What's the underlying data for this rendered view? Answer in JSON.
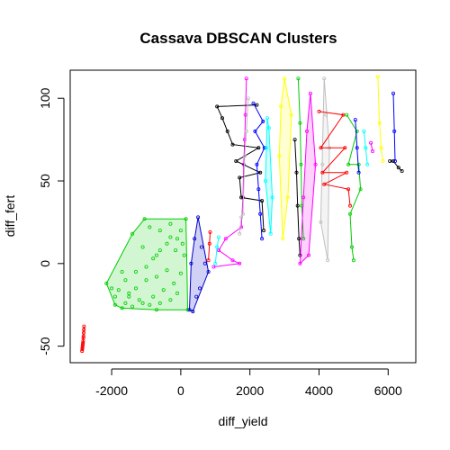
{
  "chart_data": {
    "type": "scatter",
    "title": "Cassava DBSCAN Clusters",
    "xlabel": "diff_yield",
    "ylabel": "diff_fert",
    "xlim": [
      -3200,
      6800
    ],
    "ylim": [
      -60,
      117
    ],
    "x_ticks": [
      -2000,
      0,
      2000,
      4000,
      6000
    ],
    "y_ticks": [
      -50,
      0,
      50,
      100
    ],
    "x_tick_labels": [
      "-2000",
      "0",
      "2000",
      "4000",
      "6000"
    ],
    "y_tick_labels": [
      "-50",
      "0",
      "50",
      "100"
    ],
    "grid": false,
    "legend": "none",
    "hull_fill": true,
    "clusters": [
      {
        "color": "#ff0000",
        "hull": false,
        "points": [
          [
            -2800,
            -38
          ],
          [
            -2805,
            -40
          ],
          [
            -2810,
            -42
          ],
          [
            -2815,
            -44
          ],
          [
            -2820,
            -45
          ],
          [
            -2825,
            -47
          ],
          [
            -2830,
            -48
          ],
          [
            -2835,
            -49
          ],
          [
            -2840,
            -50
          ],
          [
            -2845,
            -51
          ],
          [
            -2850,
            -52
          ],
          [
            -2855,
            -53
          ]
        ]
      },
      {
        "color": "#00cd00",
        "hull": true,
        "points": [
          [
            -2150,
            -12
          ],
          [
            -1050,
            27
          ],
          [
            150,
            27
          ],
          [
            200,
            -28
          ],
          [
            -700,
            -28
          ],
          [
            -1700,
            -27
          ],
          [
            -1900,
            -20
          ],
          [
            -1800,
            -16
          ],
          [
            -1600,
            -10
          ],
          [
            -1300,
            -5
          ],
          [
            -1000,
            -2
          ],
          [
            -800,
            3
          ],
          [
            -600,
            8
          ],
          [
            -400,
            12
          ],
          [
            -300,
            16
          ],
          [
            -600,
            20
          ],
          [
            -900,
            22
          ],
          [
            -300,
            24
          ],
          [
            0,
            20
          ],
          [
            -100,
            15
          ],
          [
            -1500,
            -18
          ],
          [
            -1200,
            -22
          ],
          [
            -900,
            -25
          ],
          [
            -600,
            -24
          ],
          [
            -300,
            -22
          ],
          [
            -100,
            -18
          ],
          [
            -1600,
            -24
          ],
          [
            -1400,
            -26
          ],
          [
            -1100,
            -24
          ],
          [
            -800,
            -20
          ],
          [
            -500,
            -16
          ],
          [
            -200,
            -12
          ],
          [
            0,
            -6
          ],
          [
            100,
            5
          ],
          [
            50,
            12
          ],
          [
            -150,
            8
          ],
          [
            -700,
            5
          ],
          [
            -1100,
            10
          ],
          [
            -1400,
            18
          ],
          [
            -1700,
            -5
          ],
          [
            -2000,
            -15
          ],
          [
            -1900,
            -25
          ],
          [
            -1500,
            -20
          ],
          [
            -1300,
            -15
          ],
          [
            -1000,
            -10
          ],
          [
            -700,
            -8
          ],
          [
            -400,
            -4
          ]
        ]
      },
      {
        "color": "#0000cd",
        "hull": true,
        "points": [
          [
            250,
            -28
          ],
          [
            500,
            28
          ],
          [
            800,
            -5
          ],
          [
            350,
            -29
          ],
          [
            300,
            0
          ],
          [
            400,
            15
          ],
          [
            600,
            10
          ],
          [
            700,
            0
          ],
          [
            550,
            -15
          ],
          [
            450,
            -20
          ]
        ]
      },
      {
        "color": "#ff00ff",
        "hull": false,
        "points": [
          [
            950,
            -2
          ],
          [
            1100,
            8
          ],
          [
            1300,
            15
          ],
          [
            1500,
            2
          ],
          [
            1700,
            0
          ],
          [
            1750,
            22
          ],
          [
            1800,
            40
          ],
          [
            1820,
            60
          ],
          [
            1850,
            75
          ],
          [
            1870,
            90
          ],
          [
            1900,
            112
          ]
        ]
      },
      {
        "color": "#00ffff",
        "hull": false,
        "points": [
          [
            1000,
            0
          ],
          [
            1050,
            10
          ],
          [
            1100,
            16
          ]
        ]
      },
      {
        "color": "#000000",
        "hull": false,
        "points": [
          [
            1050,
            95
          ],
          [
            1200,
            88
          ],
          [
            1350,
            80
          ],
          [
            1500,
            72
          ],
          [
            1600,
            62
          ],
          [
            1700,
            52
          ],
          [
            1750,
            40
          ],
          [
            2200,
            96
          ],
          [
            2250,
            70
          ],
          [
            2300,
            55
          ],
          [
            2350,
            38
          ],
          [
            2400,
            20
          ]
        ]
      },
      {
        "color": "#ff0000",
        "hull": false,
        "points": [
          [
            800,
            2
          ],
          [
            830,
            12
          ],
          [
            850,
            19
          ]
        ]
      },
      {
        "color": "#c0c0c0",
        "hull": false,
        "points": [
          [
            1700,
            18
          ],
          [
            1750,
            28
          ],
          [
            1800,
            30
          ],
          [
            1850,
            65
          ],
          [
            1900,
            80
          ],
          [
            1950,
            100
          ]
        ]
      },
      {
        "color": "#0000ff",
        "hull": false,
        "points": [
          [
            2100,
            97
          ],
          [
            2150,
            80
          ],
          [
            2200,
            60
          ],
          [
            2250,
            45
          ],
          [
            2300,
            30
          ],
          [
            2350,
            15
          ],
          [
            2380,
            86
          ],
          [
            2420,
            70
          ]
        ]
      },
      {
        "color": "#00ffff",
        "hull": true,
        "points": [
          [
            2500,
            88
          ],
          [
            2550,
            82
          ],
          [
            2650,
            40
          ],
          [
            2600,
            18
          ],
          [
            2450,
            50
          ],
          [
            2480,
            70
          ]
        ]
      },
      {
        "color": "#ffff00",
        "hull": true,
        "points": [
          [
            3000,
            112
          ],
          [
            3200,
            90
          ],
          [
            3100,
            40
          ],
          [
            2950,
            15
          ],
          [
            2850,
            65
          ],
          [
            2900,
            95
          ]
        ]
      },
      {
        "color": "#000000",
        "hull": false,
        "points": [
          [
            3300,
            75
          ],
          [
            3350,
            55
          ],
          [
            3380,
            35
          ],
          [
            3420,
            15
          ],
          [
            3450,
            5
          ]
        ]
      },
      {
        "color": "#00cd00",
        "hull": false,
        "points": [
          [
            3400,
            112
          ],
          [
            3450,
            85
          ],
          [
            3480,
            60
          ],
          [
            3500,
            35
          ],
          [
            3550,
            15
          ]
        ]
      },
      {
        "color": "#ff00ff",
        "hull": true,
        "points": [
          [
            3750,
            103
          ],
          [
            3900,
            60
          ],
          [
            3700,
            5
          ],
          [
            3450,
            0
          ],
          [
            3550,
            40
          ],
          [
            3650,
            80
          ]
        ]
      },
      {
        "color": "#c0c0c0",
        "hull": true,
        "points": [
          [
            4150,
            112
          ],
          [
            4300,
            70
          ],
          [
            4250,
            2
          ],
          [
            4050,
            25
          ],
          [
            4100,
            60
          ],
          [
            4200,
            90
          ]
        ]
      },
      {
        "color": "#ff0000",
        "hull": false,
        "points": [
          [
            4000,
            92
          ],
          [
            4050,
            70
          ],
          [
            4100,
            55
          ],
          [
            4150,
            48
          ],
          [
            4700,
            90
          ],
          [
            4750,
            70
          ],
          [
            4800,
            55
          ],
          [
            4850,
            45
          ],
          [
            4900,
            35
          ]
        ]
      },
      {
        "color": "#00cd00",
        "hull": false,
        "points": [
          [
            4800,
            90
          ],
          [
            4850,
            60
          ],
          [
            4900,
            30
          ],
          [
            4950,
            10
          ],
          [
            5000,
            2
          ],
          [
            5100,
            80
          ],
          [
            5150,
            60
          ],
          [
            5200,
            45
          ]
        ]
      },
      {
        "color": "#0000ff",
        "hull": false,
        "points": [
          [
            5050,
            87
          ],
          [
            5100,
            70
          ],
          [
            5150,
            55
          ]
        ]
      },
      {
        "color": "#00ffff",
        "hull": false,
        "points": [
          [
            5300,
            80
          ],
          [
            5350,
            70
          ],
          [
            5400,
            60
          ]
        ]
      },
      {
        "color": "#ff00ff",
        "hull": false,
        "points": [
          [
            5500,
            73
          ],
          [
            5550,
            68
          ]
        ]
      },
      {
        "color": "#ffff00",
        "hull": false,
        "points": [
          [
            5700,
            113
          ],
          [
            5750,
            85
          ],
          [
            5800,
            70
          ],
          [
            5850,
            62
          ]
        ]
      },
      {
        "color": "#000000",
        "hull": false,
        "points": [
          [
            6050,
            62
          ],
          [
            6150,
            62
          ],
          [
            6300,
            58
          ],
          [
            6400,
            56
          ]
        ]
      },
      {
        "color": "#0000ff",
        "hull": false,
        "points": [
          [
            6150,
            103
          ],
          [
            6180,
            80
          ],
          [
            6200,
            62
          ]
        ]
      }
    ]
  }
}
